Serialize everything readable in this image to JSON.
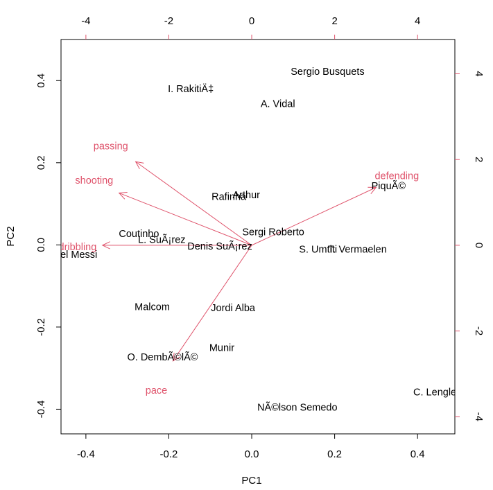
{
  "chart_data": {
    "type": "scatter",
    "subtype": "biplot",
    "xlabel": "PC1",
    "ylabel": "PC2",
    "xlim": [
      -0.46,
      0.49
    ],
    "ylim": [
      -0.46,
      0.5
    ],
    "secondary_xlim": [
      -4.6,
      4.9
    ],
    "secondary_ylim": [
      -4.4,
      4.8
    ],
    "x_ticks": [
      -0.4,
      -0.2,
      0.0,
      0.2,
      0.4
    ],
    "y_ticks": [
      -0.4,
      -0.2,
      0.0,
      0.2,
      0.4
    ],
    "secondary_x_ticks": [
      -4,
      -2,
      0,
      2,
      4
    ],
    "secondary_y_ticks": [
      -4,
      -2,
      0,
      2,
      4
    ],
    "tick_labels": {
      "x": [
        "-0.4",
        "-0.2",
        "0.0",
        "0.2",
        "0.4"
      ],
      "y": [
        "-0.4",
        "-0.2",
        "0.0",
        "0.2",
        "0.4"
      ],
      "top": [
        "-4",
        "-2",
        "0",
        "2",
        "4"
      ],
      "right": [
        "-4",
        "-2",
        "0",
        "2",
        "4"
      ]
    },
    "points": [
      {
        "label": "Sergio Busquets",
        "x": 0.183,
        "y": 0.42
      },
      {
        "label": "I. RakitiÄ‡",
        "x": -0.147,
        "y": 0.378
      },
      {
        "label": "A. Vidal",
        "x": 0.063,
        "y": 0.342
      },
      {
        "label": "PiquÃ©",
        "x": 0.33,
        "y": 0.142
      },
      {
        "label": "Rafinha",
        "x": -0.055,
        "y": 0.116
      },
      {
        "label": "Arthur",
        "x": -0.013,
        "y": 0.12
      },
      {
        "label": "Sergi Roberto",
        "x": 0.052,
        "y": 0.03
      },
      {
        "label": "Coutinho",
        "x": -0.272,
        "y": 0.026
      },
      {
        "label": "L. SuÃ¡rez",
        "x": -0.217,
        "y": 0.011
      },
      {
        "label": "Denis SuÃ¡rez",
        "x": -0.077,
        "y": -0.005
      },
      {
        "label": "Lionel Messi",
        "x": -0.44,
        "y": -0.025
      },
      {
        "label": "S. Umtiti",
        "x": 0.16,
        "y": -0.012
      },
      {
        "label": "T. Vermaelen",
        "x": 0.255,
        "y": -0.012
      },
      {
        "label": "Malcom",
        "x": -0.24,
        "y": -0.152
      },
      {
        "label": "Jordi Alba",
        "x": -0.045,
        "y": -0.155
      },
      {
        "label": "Munir",
        "x": -0.072,
        "y": -0.252
      },
      {
        "label": "O. DembÃ©lÃ©",
        "x": -0.215,
        "y": -0.275
      },
      {
        "label": "NÃ©lson Semedo",
        "x": 0.11,
        "y": -0.397
      },
      {
        "label": "C. Lenglet",
        "x": 0.445,
        "y": -0.36
      }
    ],
    "loadings": [
      {
        "name": "passing",
        "x": -2.8,
        "y": 1.95
      },
      {
        "name": "shooting",
        "x": -3.2,
        "y": 1.22
      },
      {
        "name": "dribbling",
        "x": -3.6,
        "y": 0.0
      },
      {
        "name": "defending",
        "x": 3.0,
        "y": 1.35
      },
      {
        "name": "pace",
        "x": -1.9,
        "y": -2.7
      }
    ],
    "loading_labels": [
      {
        "name": "passing",
        "x": -3.4,
        "y": 2.3
      },
      {
        "name": "shooting",
        "x": -3.8,
        "y": 1.5
      },
      {
        "name": "dribbling",
        "x": -4.2,
        "y": -0.05
      },
      {
        "name": "defending",
        "x": 3.5,
        "y": 1.6
      },
      {
        "name": "pace",
        "x": -2.3,
        "y": -3.4
      }
    ],
    "colors": {
      "points": "#000000",
      "loadings": "#DF536B"
    }
  }
}
